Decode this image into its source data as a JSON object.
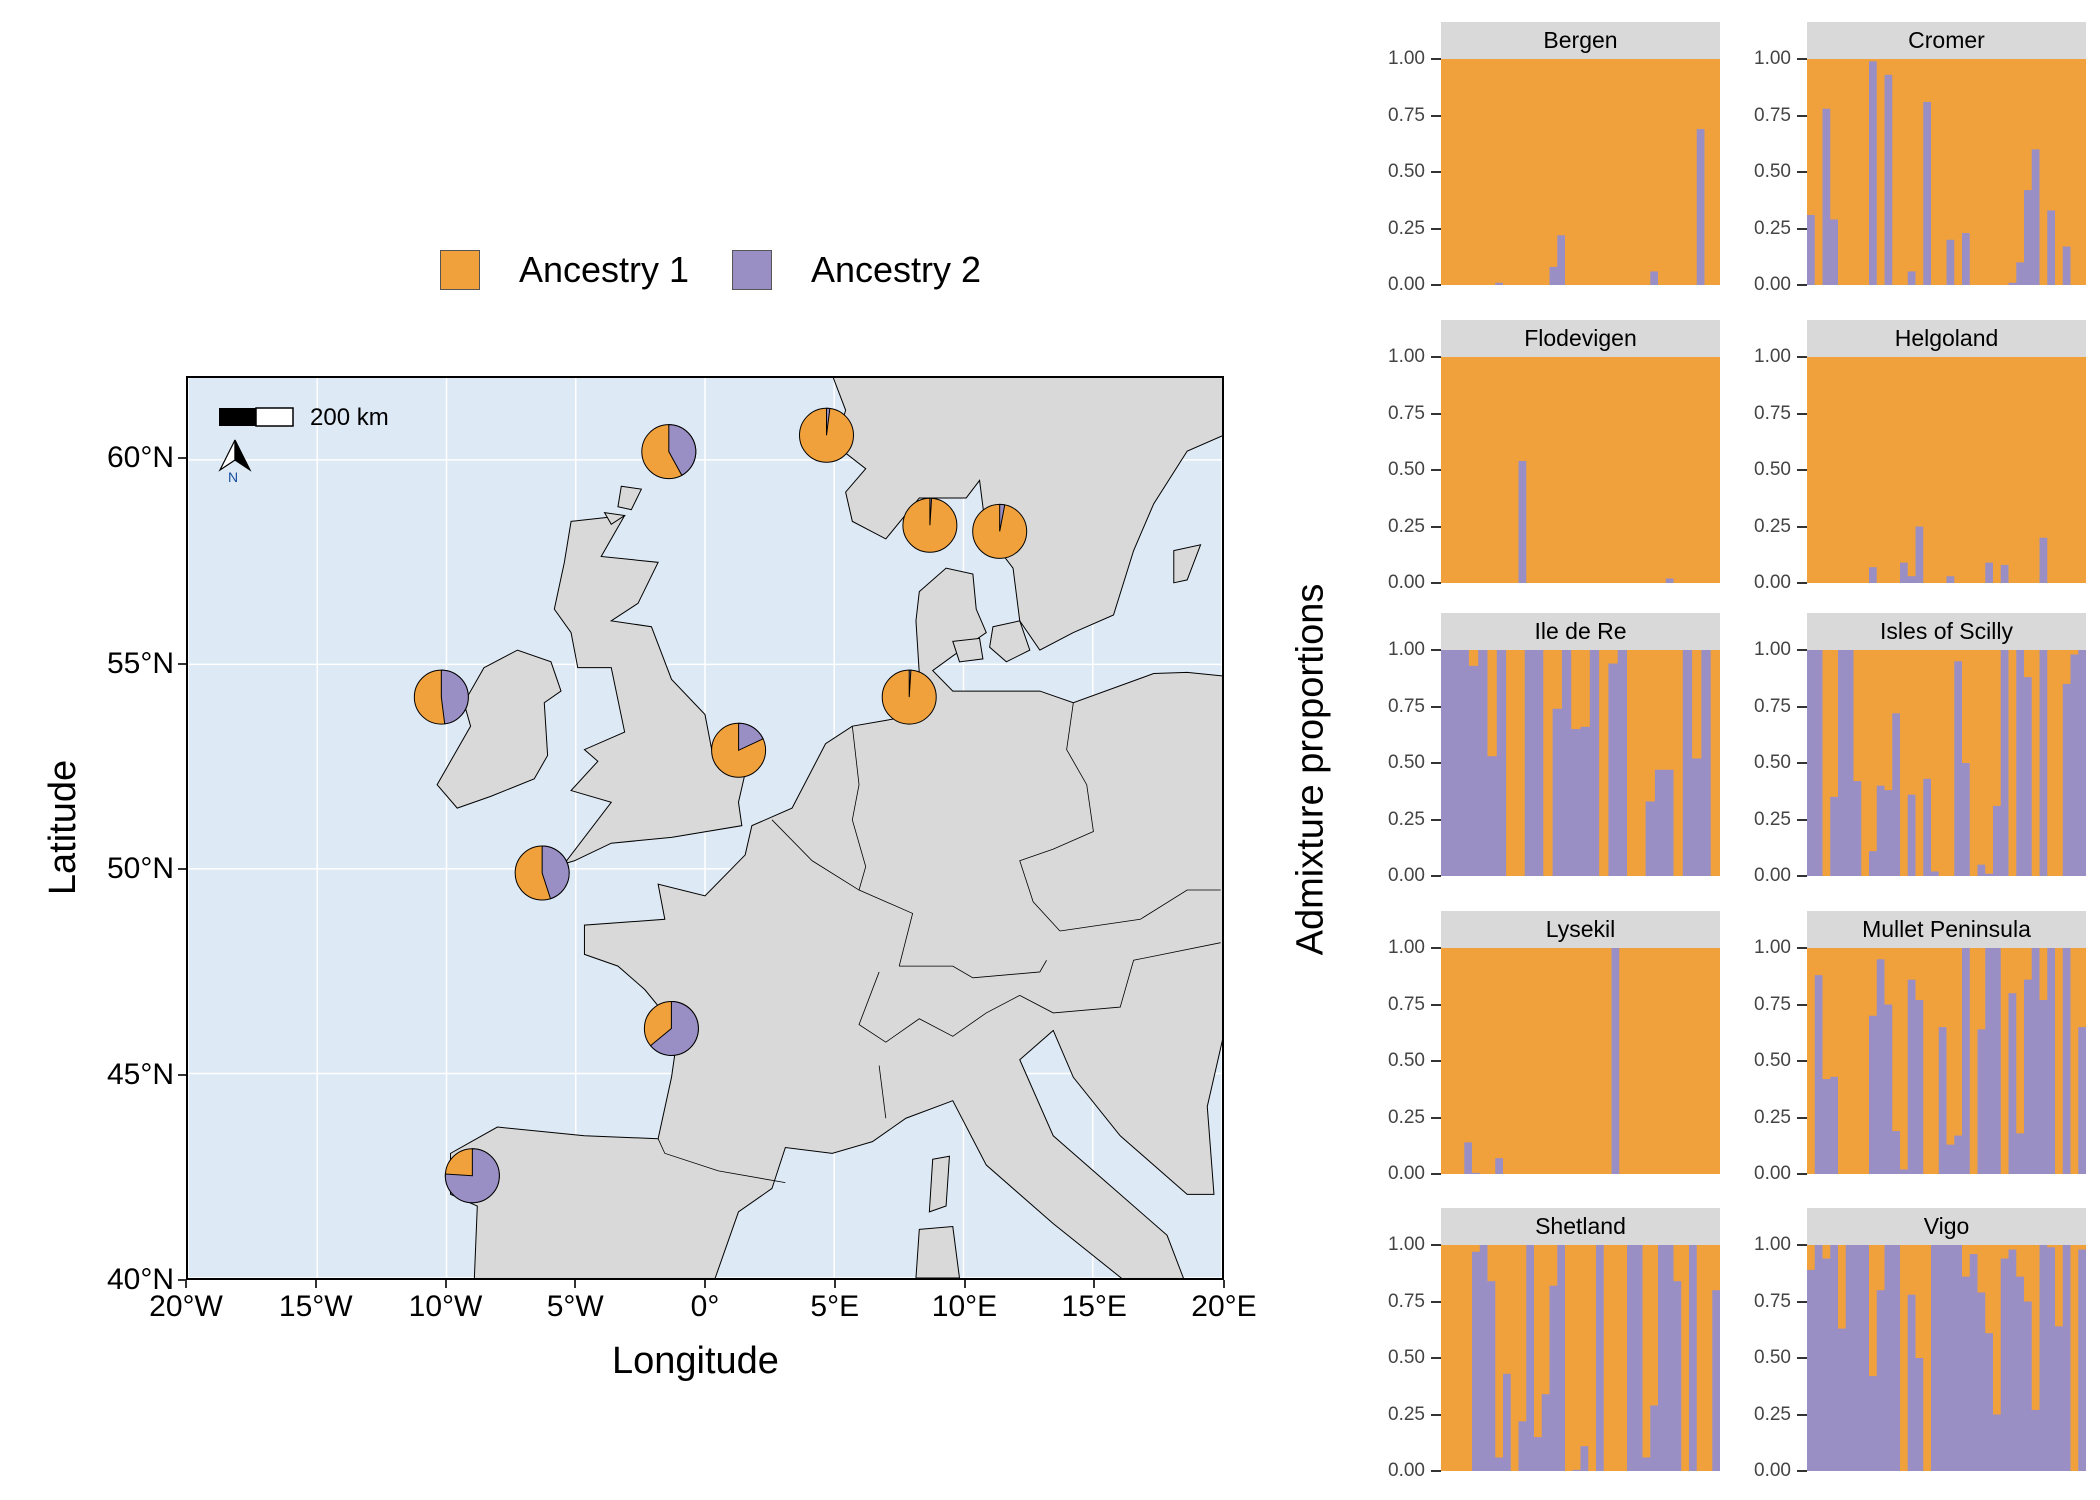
{
  "colors": {
    "ancestry1": "#f0a13c",
    "ancestry2": "#9a8fc4",
    "sea": "#dde9f5",
    "land": "#d9d9d9",
    "strip": "#d9d9d9"
  },
  "legend": {
    "position": "top",
    "items": [
      {
        "label": "Ancestry 1",
        "color": "#f0a13c"
      },
      {
        "label": "Ancestry 2",
        "color": "#9a8fc4"
      }
    ]
  },
  "chart_data": [
    {
      "type": "pie",
      "xlabel": "Longitude",
      "ylabel": "Latitude",
      "xlim": [
        -20,
        20
      ],
      "ylim": [
        40,
        62
      ],
      "grid": true,
      "x_ticks": [
        {
          "value": -20,
          "label": "20°W"
        },
        {
          "value": -15,
          "label": "15°W"
        },
        {
          "value": -10,
          "label": "10°W"
        },
        {
          "value": -5,
          "label": "5°W"
        },
        {
          "value": 0,
          "label": "0°"
        },
        {
          "value": 5,
          "label": "5°E"
        },
        {
          "value": 10,
          "label": "10°E"
        },
        {
          "value": 15,
          "label": "15°E"
        },
        {
          "value": 20,
          "label": "20°E"
        }
      ],
      "y_ticks": [
        {
          "value": 40,
          "label": "40°N"
        },
        {
          "value": 45,
          "label": "45°N"
        },
        {
          "value": 50,
          "label": "50°N"
        },
        {
          "value": 55,
          "label": "55°N"
        },
        {
          "value": 60,
          "label": "60°N"
        }
      ],
      "scale_bar": "200 km",
      "north_arrow": "N",
      "sites": [
        {
          "name": "Shetland",
          "lon": -1.4,
          "lat": 60.2,
          "ancestry2": 0.42
        },
        {
          "name": "Bergen",
          "lon": 4.7,
          "lat": 60.6,
          "ancestry2": 0.02
        },
        {
          "name": "Flodevigen",
          "lon": 8.7,
          "lat": 58.4,
          "ancestry2": 0.01
        },
        {
          "name": "Lysekil",
          "lon": 11.4,
          "lat": 58.25,
          "ancestry2": 0.03
        },
        {
          "name": "Helgoland",
          "lon": 7.9,
          "lat": 54.2,
          "ancestry2": 0.01
        },
        {
          "name": "Mullet Peninsula",
          "lon": -10.2,
          "lat": 54.2,
          "ancestry2": 0.48
        },
        {
          "name": "Cromer",
          "lon": 1.3,
          "lat": 52.9,
          "ancestry2": 0.18
        },
        {
          "name": "Isles of Scilly",
          "lon": -6.3,
          "lat": 49.9,
          "ancestry2": 0.45
        },
        {
          "name": "Ile de Re",
          "lon": -1.3,
          "lat": 46.1,
          "ancestry2": 0.64
        },
        {
          "name": "Vigo",
          "lon": -9.0,
          "lat": 42.5,
          "ancestry2": 0.76
        }
      ]
    },
    {
      "type": "bar",
      "stacked": true,
      "ylabel": "Admixture proportions",
      "ylim": [
        0,
        1
      ],
      "y_ticks": [
        "0.00",
        "0.25",
        "0.50",
        "0.75",
        "1.00"
      ],
      "panels": [
        {
          "name": "Bergen",
          "ancestry2": [
            0,
            0,
            0,
            0,
            0,
            0,
            0,
            0.01,
            0,
            0,
            0,
            0,
            0,
            0,
            0.08,
            0.22,
            0,
            0,
            0,
            0,
            0,
            0,
            0,
            0,
            0,
            0,
            0,
            0.06,
            0,
            0,
            0,
            0,
            0,
            0.69,
            0,
            0
          ]
        },
        {
          "name": "Cromer",
          "ancestry2": [
            0.31,
            0,
            0.78,
            0.29,
            0,
            0,
            0,
            0,
            0.99,
            0,
            0.93,
            0,
            0,
            0.06,
            0,
            0.81,
            0,
            0,
            0.2,
            0,
            0.23,
            0,
            0,
            0,
            0,
            0,
            0.01,
            0.1,
            0.42,
            0.6,
            0,
            0.33,
            0,
            0.17,
            0,
            0
          ]
        },
        {
          "name": "Flodevigen",
          "ancestry2": [
            0,
            0,
            0,
            0,
            0,
            0,
            0,
            0,
            0,
            0,
            0.54,
            0,
            0,
            0,
            0,
            0,
            0,
            0,
            0,
            0,
            0,
            0,
            0,
            0,
            0,
            0,
            0,
            0,
            0,
            0.02,
            0,
            0,
            0,
            0,
            0,
            0
          ]
        },
        {
          "name": "Helgoland",
          "ancestry2": [
            0,
            0,
            0,
            0,
            0,
            0,
            0,
            0,
            0.07,
            0,
            0,
            0,
            0.09,
            0.03,
            0.25,
            0,
            0,
            0,
            0.03,
            0,
            0,
            0,
            0,
            0.09,
            0,
            0.08,
            0,
            0,
            0,
            0,
            0.2,
            0,
            0,
            0,
            0,
            0
          ]
        },
        {
          "name": "Ile de Re",
          "ancestry2": [
            1,
            1,
            1,
            0.93,
            1,
            0.53,
            1,
            0,
            0,
            1,
            1,
            0,
            0.74,
            1,
            0.65,
            0.66,
            1,
            0,
            0.94,
            1,
            0,
            0,
            0.33,
            0.47,
            0.47,
            0,
            1,
            0.52,
            1,
            0
          ]
        },
        {
          "name": "Isles of Scilly",
          "ancestry2": [
            1,
            1,
            0,
            0.35,
            1,
            1,
            0.42,
            0,
            0.11,
            0.4,
            0.38,
            0.72,
            0,
            0.36,
            0,
            0.43,
            0.02,
            0,
            0,
            0.95,
            0.5,
            0,
            0.05,
            0.01,
            0.31,
            1,
            0,
            1,
            0.88,
            0,
            1,
            0,
            0,
            0.85,
            0.98,
            1
          ]
        },
        {
          "name": "Lysekil",
          "ancestry2": [
            0,
            0,
            0,
            0.14,
            0.005,
            0,
            0,
            0.07,
            0,
            0,
            0,
            0,
            0,
            0,
            0,
            0,
            0,
            0,
            0,
            0,
            0,
            0,
            1,
            0,
            0,
            0,
            0,
            0,
            0,
            0,
            0,
            0,
            0,
            0,
            0,
            0
          ]
        },
        {
          "name": "Mullet Peninsula",
          "ancestry2": [
            0,
            0.88,
            0.42,
            0.43,
            0,
            0,
            0,
            0,
            0.7,
            0.95,
            0.75,
            0.19,
            0.02,
            0.86,
            0.77,
            0,
            0,
            0.65,
            0.13,
            0.17,
            1,
            0,
            0.64,
            1,
            1,
            0,
            0.8,
            0.18,
            0.86,
            1,
            0.77,
            1,
            0,
            1,
            0,
            0.65
          ]
        },
        {
          "name": "Shetland",
          "ancestry2": [
            0,
            0,
            0,
            0,
            0.97,
            1,
            0.84,
            0.06,
            0.43,
            0,
            0.22,
            1,
            0.15,
            0.34,
            0.82,
            1,
            0,
            0.005,
            0.11,
            0,
            1,
            0,
            0,
            0,
            1,
            1,
            0.06,
            0.29,
            1,
            1,
            0.84,
            0,
            1,
            0,
            0,
            0.8
          ]
        },
        {
          "name": "Vigo",
          "ancestry2": [
            0.89,
            1,
            0.94,
            1,
            0.63,
            1,
            1,
            1,
            0.42,
            0.8,
            1,
            1,
            0,
            0.78,
            0.5,
            0,
            1,
            1,
            1,
            1,
            0.86,
            0.96,
            0.79,
            0.61,
            0.25,
            0.94,
            0.98,
            0.86,
            0.75,
            0.27,
            1,
            0.99,
            0.64,
            1,
            0,
            0.98
          ]
        }
      ]
    }
  ]
}
